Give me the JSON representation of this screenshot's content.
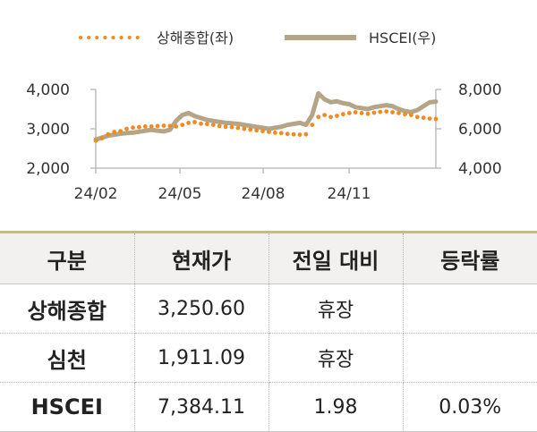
{
  "chart_data": {
    "type": "line",
    "title": "",
    "xlabel": "",
    "x_ticks": [
      "24/02",
      "24/05",
      "24/08",
      "24/11"
    ],
    "y_left": {
      "ticks": [
        "2,000",
        "3,000",
        "4,000"
      ],
      "min": 2000,
      "max": 4000
    },
    "y_right": {
      "ticks": [
        "4,000",
        "6,000",
        "8,000"
      ],
      "min": 4000,
      "max": 8000
    },
    "series": [
      {
        "name": "상해종합(좌)",
        "axis": "left",
        "style": "dotted",
        "color": "#f08a24",
        "values": [
          2700,
          2760,
          2860,
          2920,
          2940,
          3000,
          3030,
          3040,
          3060,
          3060,
          3070,
          3080,
          3070,
          3060,
          3100,
          3150,
          3170,
          3130,
          3120,
          3100,
          3070,
          3050,
          3040,
          3020,
          3000,
          2980,
          2960,
          2940,
          2920,
          2900,
          2890,
          2870,
          2860,
          2850,
          2860,
          3100,
          3300,
          3350,
          3300,
          3330,
          3370,
          3400,
          3420,
          3400,
          3380,
          3410,
          3430,
          3440,
          3420,
          3400,
          3370,
          3350,
          3300,
          3280,
          3260,
          3250
        ]
      },
      {
        "name": "HSCEI(우)",
        "axis": "right",
        "style": "solid",
        "color": "#b5a587",
        "values": [
          5450,
          5550,
          5650,
          5700,
          5750,
          5780,
          5800,
          5850,
          5900,
          5950,
          5900,
          5870,
          5950,
          6400,
          6700,
          6800,
          6650,
          6550,
          6450,
          6400,
          6350,
          6300,
          6280,
          6250,
          6200,
          6150,
          6100,
          6050,
          6000,
          6050,
          6100,
          6200,
          6250,
          6300,
          6200,
          6700,
          7800,
          7500,
          7350,
          7400,
          7300,
          7250,
          7100,
          7050,
          7000,
          7100,
          7150,
          7200,
          7150,
          7000,
          6900,
          6850,
          6950,
          7150,
          7350,
          7384
        ]
      }
    ]
  },
  "table": {
    "headers": [
      "구분",
      "현재가",
      "전일 대비",
      "등락률"
    ],
    "rows": [
      {
        "name": "상해종합",
        "price": "3,250.60",
        "change": "휴장",
        "rate": ""
      },
      {
        "name": "심천",
        "price": "1,911.09",
        "change": "휴장",
        "rate": ""
      },
      {
        "name": "HSCEI",
        "price": "7,384.11",
        "change": "1.98",
        "rate": "0.03%"
      }
    ]
  }
}
